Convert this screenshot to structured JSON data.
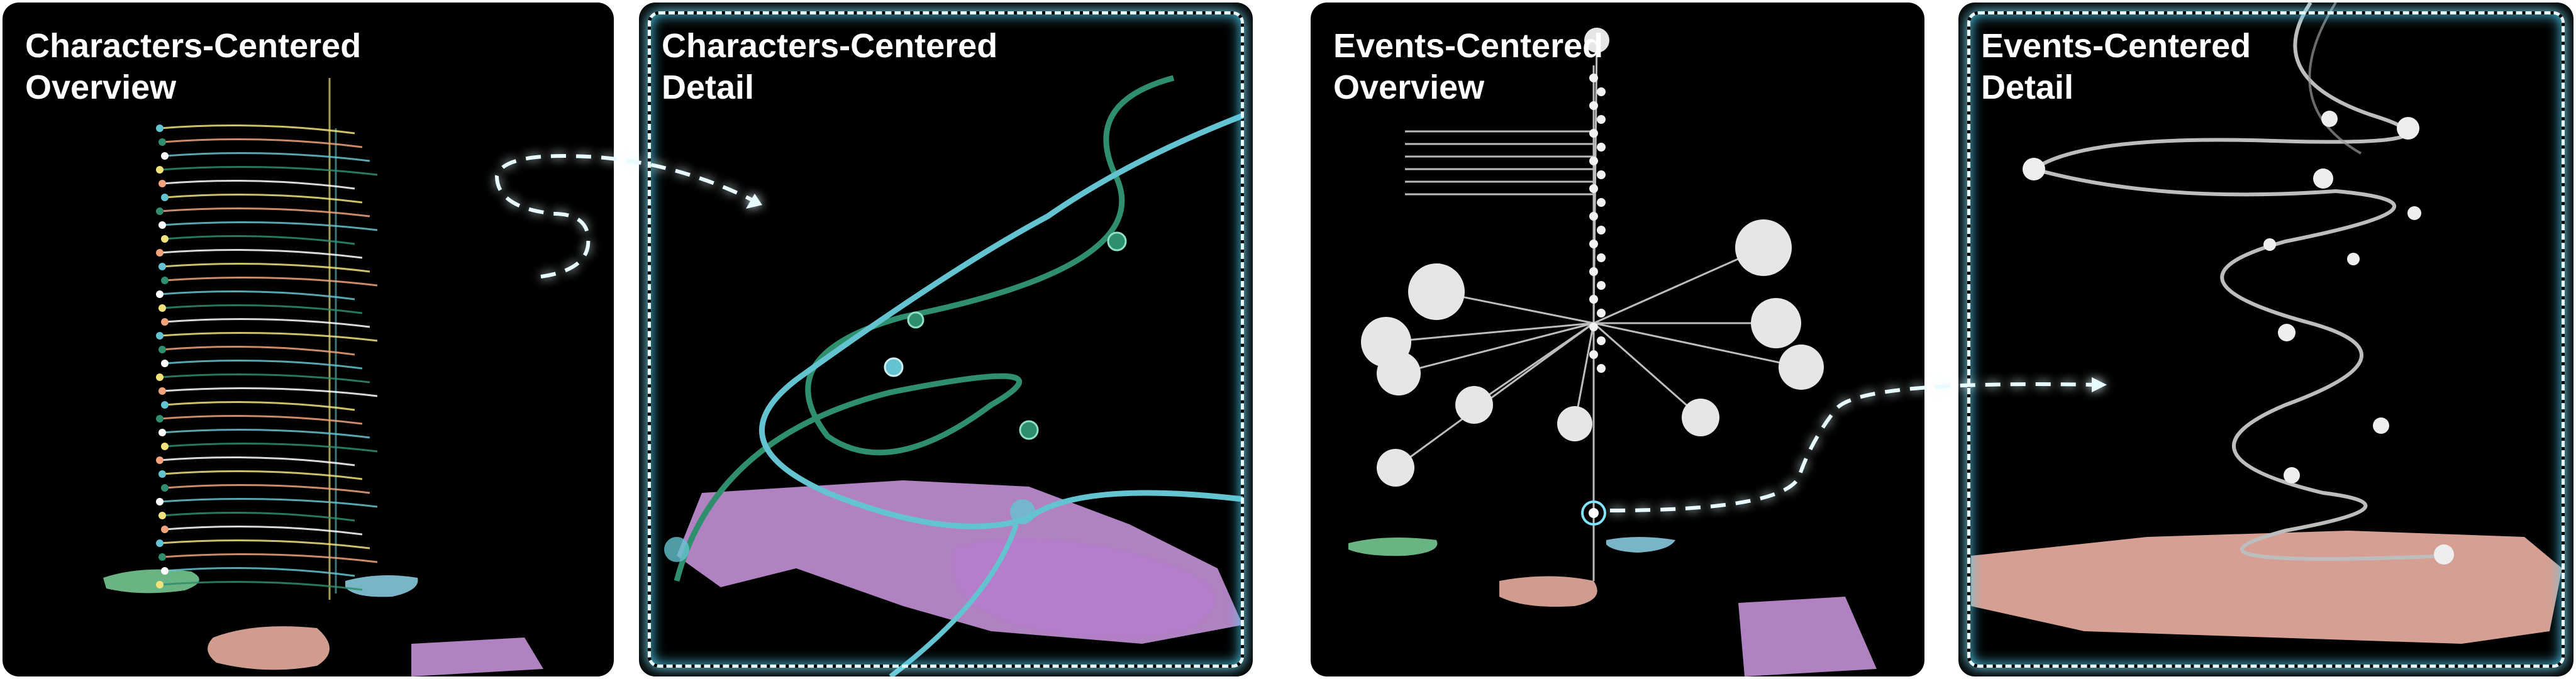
{
  "panels": [
    {
      "id": "characters-overview",
      "title": "Characters-Centered\nOverview",
      "highlighted": false
    },
    {
      "id": "characters-detail",
      "title": "Characters-Centered\nDetail",
      "highlighted": true
    },
    {
      "id": "events-overview",
      "title": "Events-Centered\nOverview",
      "highlighted": false
    },
    {
      "id": "events-detail",
      "title": "Events-Centered\nDetail",
      "highlighted": true
    }
  ],
  "colors": {
    "background": "#000000",
    "glow": "#7fe6ff",
    "map_purple": "#c390d6",
    "map_pink": "#e8ada0",
    "map_green": "#7cd39a",
    "map_blue": "#8fd3ea",
    "line_green": "#2f8f6c",
    "line_cyan": "#64c3d0",
    "line_yellow": "#f2e27b",
    "line_orange": "#f0a37c",
    "line_gray": "#bdbdbd"
  }
}
